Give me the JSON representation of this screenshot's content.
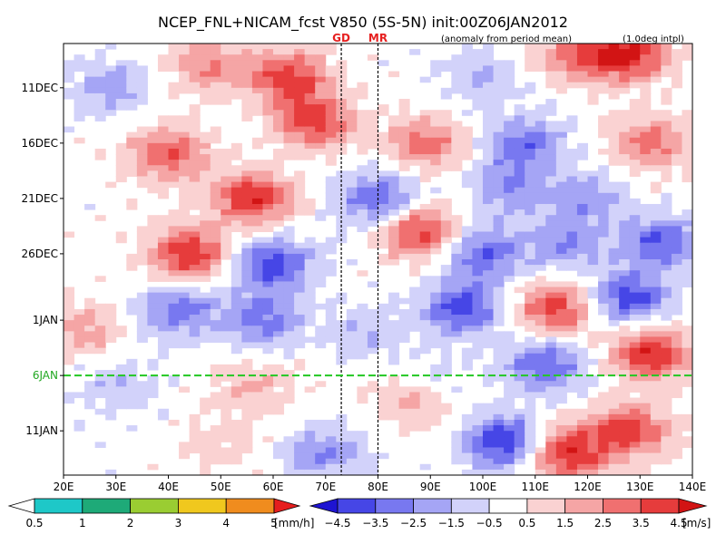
{
  "chart_data": {
    "type": "heatmap",
    "title": "NCEP_FNL+NICAM_fcst V850 (5S-5N) init:00Z06JAN2012",
    "subtitle_left": "(anomaly from period mean)",
    "subtitle_right": "(1.0deg intpl)",
    "markers": [
      "GD",
      "MR"
    ],
    "marker_lon": [
      73,
      80
    ],
    "init_label": "6JAN",
    "xlim": [
      20,
      140
    ],
    "x_ticks": [
      "20E",
      "30E",
      "40E",
      "50E",
      "60E",
      "70E",
      "80E",
      "90E",
      "100E",
      "110E",
      "120E",
      "130E",
      "140E"
    ],
    "y_ticks": [
      "11DEC",
      "16DEC",
      "21DEC",
      "26DEC",
      "1JAN",
      "6JAN",
      "11JAN"
    ],
    "y_tick_day": [
      10,
      15,
      20,
      25,
      31,
      36,
      41
    ],
    "day_range": [
      6,
      45
    ],
    "init_day": 36,
    "v850_units": "[m/s]",
    "v850_levels": [
      "−4.5",
      "−3.5",
      "−2.5",
      "−1.5",
      "−0.5",
      "0.5",
      "1.5",
      "2.5",
      "3.5",
      "4.5"
    ],
    "v850_colors": [
      "#1e14d2",
      "#4646e6",
      "#7878f0",
      "#a5a5f5",
      "#d2d2fa",
      "#ffffff",
      "#fad2d2",
      "#f5a5a5",
      "#f07070",
      "#e63c3c",
      "#d21414"
    ],
    "precip_units": "[mm/h]",
    "precip_levels": [
      "0.5",
      "1",
      "2",
      "3",
      "4",
      "5"
    ],
    "precip_colors": [
      "#ffffff",
      "#1ec8c8",
      "#1eaa78",
      "#9acd32",
      "#f0c81e",
      "#f08c1e",
      "#e61e1e"
    ],
    "v850_features": [
      {
        "lon": 63,
        "day": 9,
        "v": 4.0
      },
      {
        "lon": 48,
        "day": 8,
        "v": 2.5
      },
      {
        "lon": 29,
        "day": 10,
        "v": -2.0
      },
      {
        "lon": 100,
        "day": 9,
        "v": -1.5
      },
      {
        "lon": 118,
        "day": 7,
        "v": 3.0
      },
      {
        "lon": 128,
        "day": 7,
        "v": 4.5
      },
      {
        "lon": 68,
        "day": 13,
        "v": 4.0
      },
      {
        "lon": 40,
        "day": 16,
        "v": 3.5
      },
      {
        "lon": 89,
        "day": 15,
        "v": 3.0
      },
      {
        "lon": 108,
        "day": 15,
        "v": -3.0
      },
      {
        "lon": 132,
        "day": 15,
        "v": 3.0
      },
      {
        "lon": 56,
        "day": 20,
        "v": 4.5
      },
      {
        "lon": 80,
        "day": 20,
        "v": -3.5
      },
      {
        "lon": 105,
        "day": 19,
        "v": -2.5
      },
      {
        "lon": 120,
        "day": 20,
        "v": -2.0
      },
      {
        "lon": 44,
        "day": 25,
        "v": 4.5
      },
      {
        "lon": 60,
        "day": 26,
        "v": -4.0
      },
      {
        "lon": 88,
        "day": 23,
        "v": 4.0
      },
      {
        "lon": 100,
        "day": 25,
        "v": -3.5
      },
      {
        "lon": 116,
        "day": 24,
        "v": -2.5
      },
      {
        "lon": 134,
        "day": 24,
        "v": -3.5
      },
      {
        "lon": 42,
        "day": 30,
        "v": -3.0
      },
      {
        "lon": 58,
        "day": 31,
        "v": -3.0
      },
      {
        "lon": 78,
        "day": 32,
        "v": -1.5
      },
      {
        "lon": 96,
        "day": 30,
        "v": -4.0
      },
      {
        "lon": 114,
        "day": 30,
        "v": 4.0
      },
      {
        "lon": 128,
        "day": 29,
        "v": -4.0
      },
      {
        "lon": 24,
        "day": 32,
        "v": 2.0
      },
      {
        "lon": 30,
        "day": 37,
        "v": -1.5
      },
      {
        "lon": 56,
        "day": 37,
        "v": 1.5
      },
      {
        "lon": 90,
        "day": 37,
        "v": -2.0
      },
      {
        "lon": 112,
        "day": 35,
        "v": -3.5
      },
      {
        "lon": 132,
        "day": 34,
        "v": 4.5
      },
      {
        "lon": 88,
        "day": 38,
        "v": 3.0
      },
      {
        "lon": 104,
        "day": 42,
        "v": -4.5
      },
      {
        "lon": 116,
        "day": 43,
        "v": 4.5
      },
      {
        "lon": 128,
        "day": 41,
        "v": 4.0
      },
      {
        "lon": 70,
        "day": 43,
        "v": -2.5
      },
      {
        "lon": 50,
        "day": 42,
        "v": 1.0
      }
    ]
  }
}
